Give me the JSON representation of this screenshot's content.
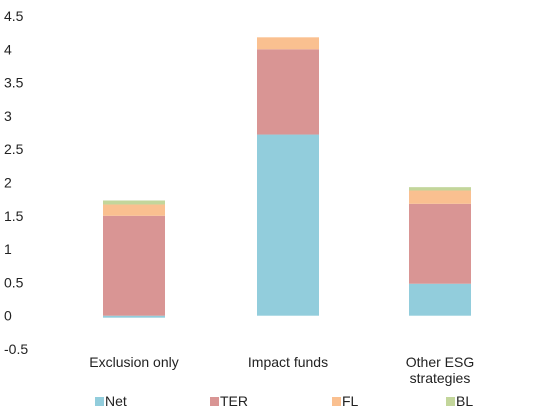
{
  "chart_data": {
    "type": "bar",
    "stacked": true,
    "title": "",
    "xlabel": "",
    "ylabel": "",
    "ylim": [
      -0.5,
      4.5
    ],
    "yticks": [
      -0.5,
      0,
      0.5,
      1,
      1.5,
      2,
      2.5,
      3,
      3.5,
      4,
      4.5
    ],
    "ytick_labels": [
      "-0.5",
      "0",
      "0.5",
      "1",
      "1.5",
      "2",
      "2.5",
      "3",
      "3.5",
      "4",
      "4.5"
    ],
    "grid": false,
    "legend_position": "bottom",
    "categories": [
      [
        "Exclusion only"
      ],
      [
        "Impact funds"
      ],
      [
        "Other ESG",
        "strategies"
      ]
    ],
    "series": [
      {
        "name": "Net",
        "color": "#92cddc",
        "values": [
          -0.03,
          2.72,
          0.48
        ]
      },
      {
        "name": "TER",
        "color": "#d99594",
        "values": [
          1.5,
          1.28,
          1.2
        ]
      },
      {
        "name": "FL",
        "color": "#fac090",
        "values": [
          0.17,
          0.18,
          0.2
        ]
      },
      {
        "name": "BL",
        "color": "#c3d69b",
        "values": [
          0.06,
          0.0,
          0.05
        ]
      }
    ]
  }
}
